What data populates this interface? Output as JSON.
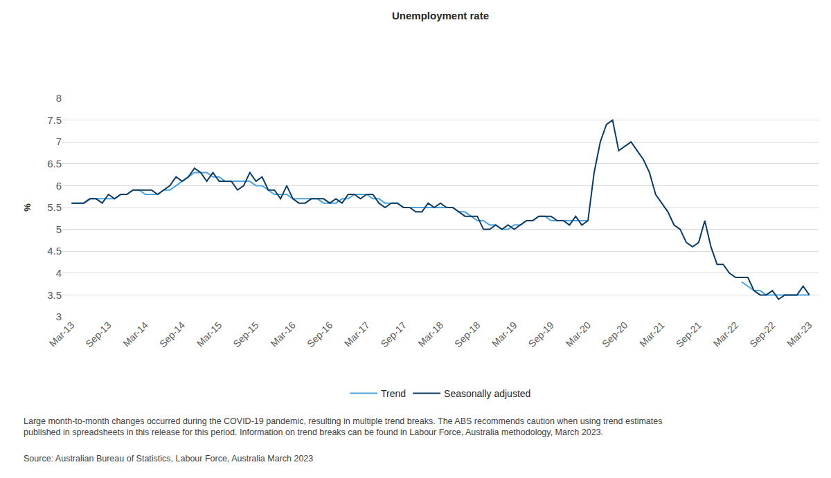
{
  "chart_data": {
    "type": "line",
    "title": "Unemployment rate",
    "y_label": "%",
    "categories": [
      "Mar-13",
      null,
      null,
      null,
      null,
      null,
      "Sep-13",
      null,
      null,
      null,
      null,
      null,
      "Mar-14",
      null,
      null,
      null,
      null,
      null,
      "Sep-14",
      null,
      null,
      null,
      null,
      null,
      "Mar-15",
      null,
      null,
      null,
      null,
      null,
      "Sep-15",
      null,
      null,
      null,
      null,
      null,
      "Mar-16",
      null,
      null,
      null,
      null,
      null,
      "Sep-16",
      null,
      null,
      null,
      null,
      null,
      "Mar-17",
      null,
      null,
      null,
      null,
      null,
      "Sep-17",
      null,
      null,
      null,
      null,
      null,
      "Mar-18",
      null,
      null,
      null,
      null,
      null,
      "Sep-18",
      null,
      null,
      null,
      null,
      null,
      "Mar-19",
      null,
      null,
      null,
      null,
      null,
      "Sep-19",
      null,
      null,
      null,
      null,
      null,
      "Mar-20",
      null,
      null,
      null,
      null,
      null,
      "Sep-20",
      null,
      null,
      null,
      null,
      null,
      "Mar-21",
      null,
      null,
      null,
      null,
      null,
      "Sep-21",
      null,
      null,
      null,
      null,
      null,
      "Mar-22",
      null,
      null,
      null,
      null,
      null,
      "Sep-22",
      null,
      null,
      null,
      null,
      null,
      "Mar-23"
    ],
    "series": [
      {
        "name": "Trend",
        "color": "#4aa3df",
        "line_style": "solid",
        "values": [
          5.6,
          5.6,
          5.6,
          5.7,
          5.7,
          5.7,
          5.7,
          5.7,
          5.8,
          5.8,
          5.9,
          5.9,
          5.8,
          5.8,
          5.8,
          5.9,
          5.9,
          6.0,
          6.1,
          6.2,
          6.3,
          6.3,
          6.3,
          6.2,
          6.2,
          6.1,
          6.1,
          6.1,
          6.1,
          6.1,
          6.0,
          6.0,
          5.9,
          5.8,
          5.8,
          5.8,
          5.7,
          5.7,
          5.7,
          5.7,
          5.7,
          5.6,
          5.6,
          5.6,
          5.7,
          5.7,
          5.8,
          5.8,
          5.8,
          5.7,
          5.7,
          5.6,
          5.6,
          5.6,
          5.5,
          5.5,
          5.5,
          5.5,
          5.5,
          5.5,
          5.5,
          5.5,
          5.5,
          5.4,
          5.4,
          5.3,
          5.2,
          5.2,
          5.1,
          5.1,
          5.0,
          5.0,
          5.1,
          5.1,
          5.2,
          5.2,
          5.3,
          5.3,
          5.2,
          5.2,
          5.2,
          5.2,
          5.2,
          5.2,
          5.2,
          null,
          null,
          null,
          null,
          null,
          null,
          null,
          null,
          null,
          null,
          null,
          null,
          null,
          null,
          null,
          null,
          null,
          null,
          null,
          null,
          null,
          null,
          null,
          null,
          3.8,
          3.7,
          3.6,
          3.6,
          3.5,
          3.5,
          3.5,
          3.5,
          3.5,
          3.5,
          3.5,
          3.5
        ]
      },
      {
        "name": "Seasonally adjusted",
        "color": "#0b3a62",
        "line_style": "solid",
        "values": [
          5.6,
          5.6,
          5.6,
          5.7,
          5.7,
          5.6,
          5.8,
          5.7,
          5.8,
          5.8,
          5.9,
          5.9,
          5.9,
          5.9,
          5.8,
          5.9,
          6.0,
          6.2,
          6.1,
          6.2,
          6.4,
          6.3,
          6.1,
          6.3,
          6.1,
          6.1,
          6.1,
          5.9,
          6.0,
          6.3,
          6.1,
          6.2,
          5.9,
          5.9,
          5.7,
          6.0,
          5.7,
          5.6,
          5.6,
          5.7,
          5.7,
          5.7,
          5.6,
          5.7,
          5.6,
          5.8,
          5.8,
          5.7,
          5.8,
          5.8,
          5.6,
          5.5,
          5.6,
          5.6,
          5.5,
          5.5,
          5.4,
          5.4,
          5.6,
          5.5,
          5.6,
          5.5,
          5.5,
          5.4,
          5.3,
          5.3,
          5.3,
          5.0,
          5.0,
          5.1,
          5.0,
          5.1,
          5.0,
          5.1,
          5.2,
          5.2,
          5.3,
          5.3,
          5.3,
          5.2,
          5.2,
          5.1,
          5.3,
          5.1,
          5.2,
          6.3,
          7.0,
          7.4,
          7.5,
          6.8,
          6.9,
          7.0,
          6.8,
          6.6,
          6.3,
          5.8,
          5.6,
          5.4,
          5.1,
          5.0,
          4.7,
          4.6,
          4.7,
          5.2,
          4.6,
          4.2,
          4.2,
          4.0,
          3.9,
          3.9,
          3.9,
          3.6,
          3.5,
          3.5,
          3.6,
          3.4,
          3.5,
          3.5,
          3.5,
          3.7,
          3.5
        ]
      }
    ],
    "ylim": [
      3,
      8
    ],
    "yticks": [
      3,
      3.5,
      4,
      4.5,
      5,
      5.5,
      6,
      6.5,
      7,
      7.5,
      8
    ],
    "grid": true,
    "legend": "bottom",
    "annotations": [
      [
        "Large month-to-month changes occurred during the COVID-19 pandemic, resulting in multiple trend breaks. The ABS recommends caution when using trend estimates",
        "published in spreadsheets in this release for this period. Information on trend breaks can be found in Labour Force, Australia methodology, March 2023."
      ],
      [
        "Source: Australian Bureau of Statistics, Labour Force, Australia March 2023"
      ]
    ]
  }
}
